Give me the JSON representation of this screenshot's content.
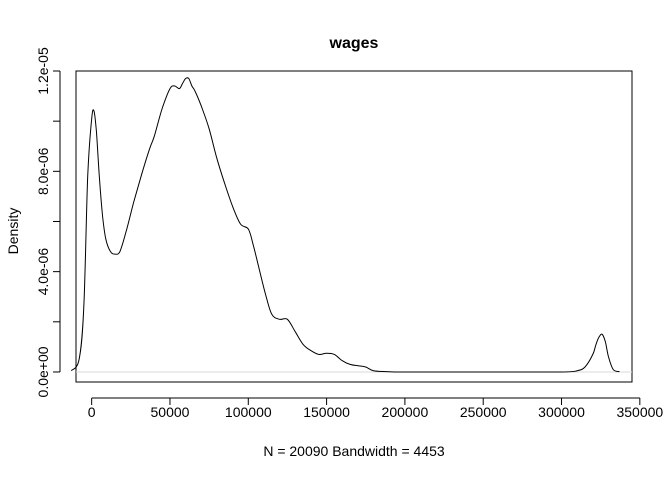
{
  "chart_data": {
    "type": "line",
    "title": "wages",
    "xlabel": "N = 20090   Bandwidth = 4453",
    "ylabel": "Density",
    "xlim": [
      -10000,
      345000
    ],
    "ylim": [
      -4e-07,
      1.2e-05
    ],
    "x_ticks": [
      0,
      50000,
      100000,
      150000,
      200000,
      250000,
      300000,
      350000
    ],
    "x_tick_labels": [
      "0",
      "50000",
      "100000",
      "150000",
      "200000",
      "250000",
      "300000",
      "350000"
    ],
    "y_ticks": [
      0,
      2e-06,
      4e-06,
      6e-06,
      8e-06,
      1e-05,
      1.2e-05
    ],
    "y_tick_labels": [
      "0.0e+00",
      "",
      "4.0e-06",
      "",
      "8.0e-06",
      "",
      "1.2e-05"
    ],
    "grid": false,
    "baseline": 0,
    "series": [
      {
        "x": [
          -13000,
          -8000,
          -5000,
          -2500,
          0,
          1500,
          3000,
          5000,
          7000,
          9000,
          12000,
          15000,
          18000,
          22000,
          27000,
          32000,
          37000,
          40000,
          45000,
          50000,
          53000,
          56000,
          58000,
          60000,
          62000,
          64000,
          66000,
          70000,
          75000,
          80000,
          85000,
          90000,
          95000,
          100000,
          103000,
          107000,
          111000,
          115000,
          120000,
          125000,
          130000,
          135000,
          140000,
          145000,
          150000,
          155000,
          160000,
          165000,
          170000,
          175000,
          180000,
          190000,
          200000,
          250000,
          300000,
          310000,
          315000,
          320000,
          322000,
          324000,
          326000,
          328000,
          330000,
          333000,
          337000
        ],
        "y": [
          5e-08,
          5e-07,
          2.6e-06,
          7.8e-06,
          1.01e-05,
          1.04e-05,
          9.6e-06,
          7.7e-06,
          6.2e-06,
          5.3e-06,
          4.8e-06,
          4.7e-06,
          4.8e-06,
          5.6e-06,
          6.8e-06,
          7.9e-06,
          8.9e-06,
          9.4e-06,
          1.05e-05,
          1.13e-05,
          1.14e-05,
          1.13e-05,
          1.15e-05,
          1.17e-05,
          1.17e-05,
          1.14e-05,
          1.12e-05,
          1.06e-05,
          9.7e-06,
          8.5e-06,
          7.5e-06,
          6.6e-06,
          5.9e-06,
          5.7e-06,
          5.1e-06,
          4.1e-06,
          3.1e-06,
          2.3e-06,
          2.1e-06,
          2.1e-06,
          1.6e-06,
          1.1e-06,
          8.5e-07,
          7e-07,
          7.5e-07,
          7e-07,
          4.5e-07,
          3e-07,
          2.5e-07,
          2e-07,
          5e-08,
          1e-08,
          0.0,
          0.0,
          0.0,
          5e-08,
          2e-07,
          7e-07,
          1.1e-06,
          1.4e-06,
          1.5e-06,
          1.2e-06,
          6e-07,
          1e-07,
          1e-08
        ]
      }
    ]
  }
}
